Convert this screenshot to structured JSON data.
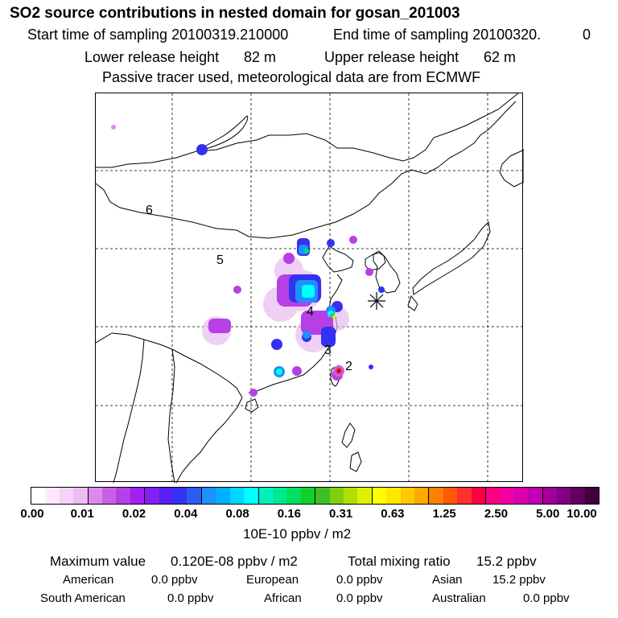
{
  "header": {
    "title": "SO2 source contributions in nested domain for gosan_201003",
    "start_label": "Start time of sampling 20100319.210000",
    "end_label": "End time of sampling 20100320.",
    "end_value": "0",
    "lower_label": "Lower release height",
    "lower_value": "82 m",
    "upper_label": "Upper release height",
    "upper_value": "62 m",
    "note": "Passive tracer used, meteorological data are from ECMWF"
  },
  "map": {
    "region_labels": [
      "6",
      "5",
      "4",
      "3",
      "2"
    ],
    "receptor_marker": "asterisk-marker"
  },
  "colorbar": {
    "colors": [
      "#ffffff",
      "#fde8fd",
      "#f6d2f8",
      "#eebcf3",
      "#dd88ee",
      "#c95fe8",
      "#b63fe5",
      "#a020f0",
      "#8420f0",
      "#5a1ef0",
      "#3232f0",
      "#2a5cf0",
      "#1e90ff",
      "#00b0ff",
      "#00d8ff",
      "#00ffff",
      "#00f0c0",
      "#00e890",
      "#00e060",
      "#10d030",
      "#40c020",
      "#80d010",
      "#b0e000",
      "#e0f000",
      "#ffff00",
      "#ffe800",
      "#ffc800",
      "#ffa800",
      "#ff8000",
      "#ff5a00",
      "#ff3030",
      "#ff0040",
      "#ff0080",
      "#f000a0",
      "#d800b0",
      "#c000b0",
      "#a0009a",
      "#800080",
      "#600060",
      "#400040"
    ],
    "tick_labels": [
      "0.00",
      "0.01",
      "0.02",
      "0.04",
      "0.08",
      "0.16",
      "0.31",
      "0.63",
      "1.25",
      "2.50",
      "5.00",
      "10.00"
    ],
    "unit_label": "10E-10 ppbv / m2"
  },
  "summary": {
    "max_label": "Maximum value",
    "max_value": "0.120E-08 ppbv / m2",
    "total_label": "Total mixing ratio",
    "total_value": "15.2 ppbv",
    "regions": [
      {
        "name": "American",
        "value": "0.0 ppbv"
      },
      {
        "name": "European",
        "value": "0.0 ppbv"
      },
      {
        "name": "Asian",
        "value": "15.2 ppbv"
      },
      {
        "name": "South American",
        "value": "0.0 ppbv"
      },
      {
        "name": "African",
        "value": "0.0 ppbv"
      },
      {
        "name": "Australian",
        "value": "0.0 ppbv"
      }
    ]
  }
}
